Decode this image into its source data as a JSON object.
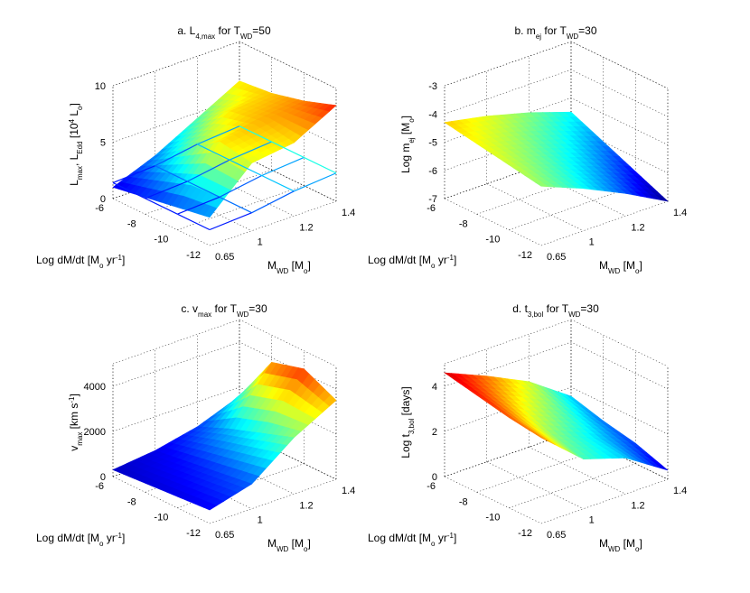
{
  "colors": {
    "colormap": [
      "#00008f",
      "#0000ff",
      "#0080ff",
      "#00ffff",
      "#80ff80",
      "#ffff00",
      "#ff8000",
      "#ff0000",
      "#800000"
    ],
    "grid": "#000000",
    "overlay": "#3355cc"
  },
  "chart_data": [
    {
      "type": "surface",
      "title": "a. L",
      "title_sub": "4,max",
      "title_mid": " for T",
      "title_sub2": "WD",
      "title_end": "=50",
      "zlabel": "L",
      "zlabel_sub": "max",
      "zlabel_mid": ", L",
      "zlabel_sub2": "Edd",
      "zlabel_end": " [10",
      "zlabel_sup": "4",
      "zlabel_end2": " L",
      "zlabel_sub3": "o",
      "zlabel_close": "]",
      "xlabel": "Log dM/dt [M",
      "xlabel_sub": "o",
      "xlabel_end": " yr",
      "xlabel_sup": "-1",
      "xlabel_close": "]",
      "ylabel": "M",
      "ylabel_sub": "WD",
      "ylabel_end": " [M",
      "ylabel_sub2": "o",
      "ylabel_close": "]",
      "x_ticks": [
        "-6",
        "-8",
        "-10",
        "-12"
      ],
      "y_ticks": [
        "0.65",
        "1",
        "1.2",
        "1.4"
      ],
      "z_ticks": [
        "0",
        "5",
        "10"
      ],
      "zlim": [
        0,
        10
      ],
      "x_values": [
        -6,
        -8,
        -10,
        -12
      ],
      "y_values": [
        0.65,
        1,
        1.2,
        1.4
      ],
      "z_values": [
        [
          1.0,
          2.5,
          4.5,
          6.5
        ],
        [
          1.5,
          4.5,
          6.5,
          6.8
        ],
        [
          2.0,
          6.5,
          7.0,
          7.5
        ],
        [
          2.5,
          6.0,
          6.5,
          8.5
        ]
      ],
      "z_overlay": [
        [
          1.4,
          1.6,
          2.2,
          2.5
        ],
        [
          1.4,
          1.6,
          2.2,
          2.5
        ],
        [
          1.4,
          1.6,
          2.2,
          2.5
        ],
        [
          1.4,
          1.6,
          2.2,
          2.5
        ]
      ]
    },
    {
      "type": "surface",
      "title": "b. m",
      "title_sub": "ej",
      "title_mid": " for T",
      "title_sub2": "WD",
      "title_end": "=30",
      "zlabel": "Log m",
      "zlabel_sub": "ej",
      "zlabel_mid": " [M",
      "zlabel_sub2": "o",
      "zlabel_end": "]",
      "xlabel": "Log dM/dt [M",
      "xlabel_sub": "o",
      "xlabel_end": " yr",
      "xlabel_sup": "-1",
      "xlabel_close": "]",
      "ylabel": "M",
      "ylabel_sub": "WD",
      "ylabel_end": " [M",
      "ylabel_sub2": "o",
      "ylabel_close": "]",
      "x_ticks": [
        "-6",
        "-8",
        "-10",
        "-12"
      ],
      "y_ticks": [
        "0.65",
        "1",
        "1.2",
        "1.4"
      ],
      "z_ticks": [
        "-7",
        "-6",
        "-5",
        "-4",
        "-3"
      ],
      "zlim": [
        -7,
        -3
      ],
      "x_values": [
        -6,
        -8,
        -10,
        -12
      ],
      "y_values": [
        0.65,
        1,
        1.2,
        1.4
      ],
      "z_values": [
        [
          -4.3,
          -4.6,
          -5.0,
          -5.5
        ],
        [
          -4.5,
          -4.9,
          -5.4,
          -6.0
        ],
        [
          -4.7,
          -5.2,
          -5.8,
          -6.5
        ],
        [
          -4.9,
          -5.5,
          -6.2,
          -7.0
        ]
      ]
    },
    {
      "type": "surface",
      "title": "c. v",
      "title_sub": "max",
      "title_mid": " for T",
      "title_sub2": "WD",
      "title_end": "=30",
      "zlabel": "v",
      "zlabel_sub": "max",
      "zlabel_mid": " [km s",
      "zlabel_sup": "-1",
      "zlabel_end": "]",
      "xlabel": "Log dM/dt [M",
      "xlabel_sub": "o",
      "xlabel_end": " yr",
      "xlabel_sup": "-1",
      "xlabel_close": "]",
      "ylabel": "M",
      "ylabel_sub": "WD",
      "ylabel_end": " [M",
      "ylabel_sub2": "o",
      "ylabel_close": "]",
      "x_ticks": [
        "-6",
        "-8",
        "-10",
        "-12"
      ],
      "y_ticks": [
        "0.65",
        "1",
        "1.2",
        "1.4"
      ],
      "z_ticks": [
        "0",
        "2000",
        "4000"
      ],
      "zlim": [
        0,
        5000
      ],
      "x_values": [
        -6,
        -8,
        -10,
        -12
      ],
      "y_values": [
        0.65,
        1,
        1.2,
        1.4
      ],
      "z_values": [
        [
          300,
          500,
          900,
          1600
        ],
        [
          400,
          700,
          1500,
          3800
        ],
        [
          500,
          900,
          2000,
          4200
        ],
        [
          600,
          1100,
          2500,
          3500
        ]
      ]
    },
    {
      "type": "surface",
      "title": "d. t",
      "title_sub": "3,bol",
      "title_mid": " for T",
      "title_sub2": "WD",
      "title_end": "=30",
      "zlabel": "Log t",
      "zlabel_sub": "3,bol",
      "zlabel_mid": " [days]",
      "xlabel": "Log dM/dt [M",
      "xlabel_sub": "o",
      "xlabel_end": " yr",
      "xlabel_sup": "-1",
      "xlabel_close": "]",
      "ylabel": "M",
      "ylabel_sub": "WD",
      "ylabel_end": " [M",
      "ylabel_sub2": "o",
      "ylabel_close": "]",
      "x_ticks": [
        "-6",
        "-8",
        "-10",
        "-12"
      ],
      "y_ticks": [
        "0.65",
        "1",
        "1.2",
        "1.4"
      ],
      "z_ticks": [
        "0",
        "2",
        "4"
      ],
      "zlim": [
        0,
        5
      ],
      "x_values": [
        -6,
        -8,
        -10,
        -12
      ],
      "y_values": [
        0.65,
        1,
        1.2,
        1.4
      ],
      "z_values": [
        [
          4.6,
          3.8,
          2.9,
          1.6
        ],
        [
          4.3,
          3.2,
          2.3,
          1.2
        ],
        [
          4.0,
          2.6,
          1.8,
          0.9
        ],
        [
          3.8,
          2.2,
          1.6,
          0.4
        ]
      ]
    }
  ]
}
